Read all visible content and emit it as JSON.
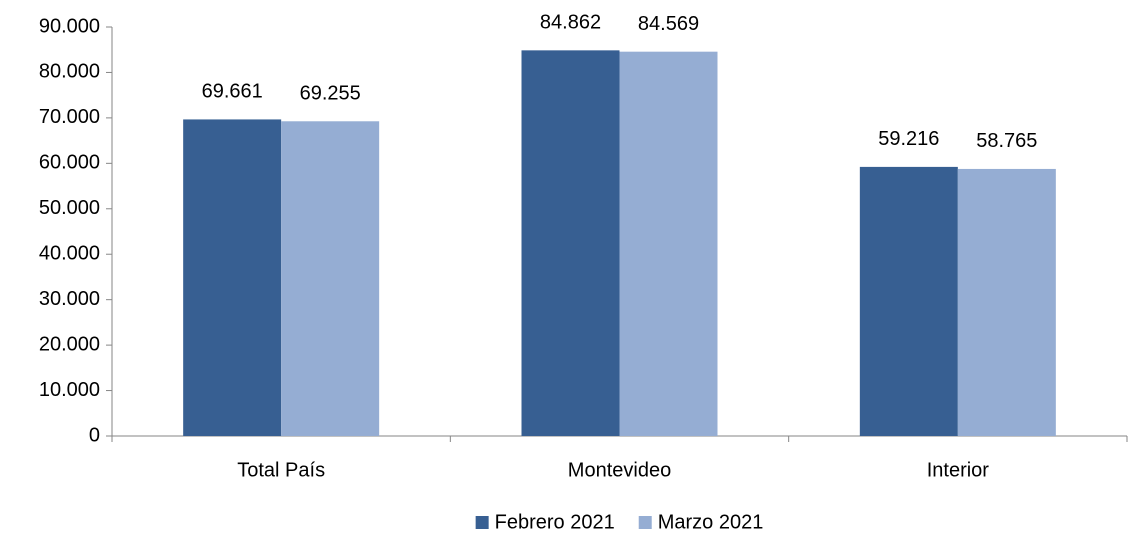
{
  "chart_data": {
    "type": "bar",
    "categories": [
      "Total País",
      "Montevideo",
      "Interior"
    ],
    "series": [
      {
        "name": "Febrero 2021",
        "color": "#375f92",
        "values": [
          69661,
          84862,
          59216
        ],
        "value_labels": [
          "69.661",
          "84.862",
          "59.216"
        ]
      },
      {
        "name": "Marzo 2021",
        "color": "#95add3",
        "values": [
          69255,
          84569,
          58765
        ],
        "value_labels": [
          "69.255",
          "84.569",
          "58.765"
        ]
      }
    ],
    "ylim": [
      0,
      90000
    ],
    "yticks": [
      0,
      {
        "value": 10000,
        "label": "10.000"
      },
      {
        "value": 20000,
        "label": "20.000"
      },
      {
        "value": 30000,
        "label": "30.000"
      },
      {
        "value": 40000,
        "label": "40.000"
      },
      {
        "value": 50000,
        "label": "50.000"
      },
      {
        "value": 60000,
        "label": "60.000"
      },
      {
        "value": 70000,
        "label": "70.000"
      },
      {
        "value": 80000,
        "label": "80.000"
      },
      {
        "value": 90000,
        "label": "90.000"
      }
    ],
    "grid": false,
    "legend": "bottom"
  }
}
